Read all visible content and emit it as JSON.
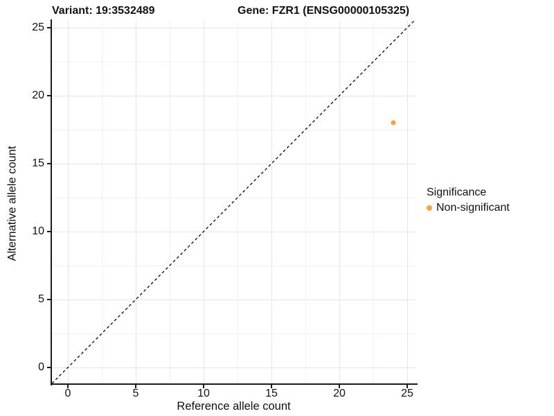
{
  "header": {
    "variant_title": "Variant: 19:3532489",
    "gene_title": "Gene: FZR1 (ENSG00000105325)"
  },
  "chart_data": {
    "type": "scatter",
    "title_left": "Variant: 19:3532489",
    "title_right": "Gene: FZR1 (ENSG00000105325)",
    "xlabel": "Reference allele count",
    "ylabel": "Alternative allele count",
    "x_ticks": [
      0,
      5,
      10,
      15,
      20,
      25
    ],
    "y_ticks": [
      0,
      5,
      10,
      15,
      20,
      25
    ],
    "minor_ticks": [
      2.5,
      7.5,
      12.5,
      17.5,
      22.5
    ],
    "xlim": [
      -1.2,
      25.6
    ],
    "ylim": [
      -1.2,
      25.5
    ],
    "grid": true,
    "reference_line": {
      "type": "identity",
      "slope": 1,
      "intercept": 0,
      "style": "dashed",
      "color": "#000000"
    },
    "series": [
      {
        "name": "Non-significant",
        "color": "#f9a242",
        "points": [
          {
            "x": 24,
            "y": 18
          }
        ]
      }
    ],
    "legend": {
      "title": "Significance",
      "position": "right",
      "entries": [
        {
          "label": "Non-significant",
          "color": "#f9a242"
        }
      ]
    }
  },
  "colors": {
    "point_orange": "#f9a242",
    "axis_line": "#1a1a1a",
    "grid_major": "#e6e6e6",
    "grid_minor": "#f2f2f2",
    "background": "#ffffff"
  }
}
